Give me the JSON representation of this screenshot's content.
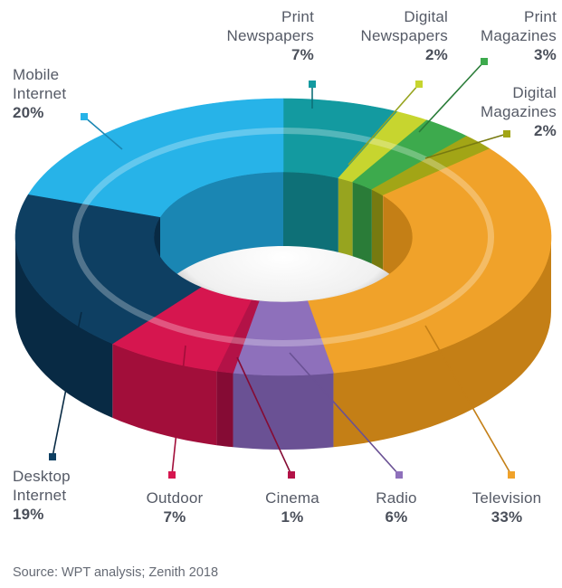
{
  "chart_data": {
    "type": "pie",
    "variant": "3d-donut",
    "slices": [
      {
        "label_line1": "Print",
        "label_line2": "Newspapers",
        "value": 7,
        "value_text": "7%",
        "color": "#139aa0",
        "side": "#0e7077"
      },
      {
        "label_line1": "Digital",
        "label_line2": "Newspapers",
        "value": 2,
        "value_text": "2%",
        "color": "#c7d52f",
        "side": "#97a41f"
      },
      {
        "label_line1": "Print",
        "label_line2": "Magazines",
        "value": 3,
        "value_text": "3%",
        "color": "#3daa4d",
        "side": "#2a7c38"
      },
      {
        "label_line1": "Digital",
        "label_line2": "Magazines",
        "value": 2,
        "value_text": "2%",
        "color": "#a2a516",
        "side": "#777a10"
      },
      {
        "label_line1": "Television",
        "label_line2": "",
        "value": 33,
        "value_text": "33%",
        "color": "#f0a22a",
        "side": "#c47f16"
      },
      {
        "label_line1": "Radio",
        "label_line2": "",
        "value": 6,
        "value_text": "6%",
        "color": "#8e70bb",
        "side": "#6a5194"
      },
      {
        "label_line1": "Cinema",
        "label_line2": "",
        "value": 1,
        "value_text": "1%",
        "color": "#b31247",
        "side": "#850b34"
      },
      {
        "label_line1": "Outdoor",
        "label_line2": "",
        "value": 7,
        "value_text": "7%",
        "color": "#d6164f",
        "side": "#a20e3a"
      },
      {
        "label_line1": "Desktop",
        "label_line2": "Internet",
        "value": 19,
        "value_text": "19%",
        "color": "#0e3f62",
        "side": "#082a44"
      },
      {
        "label_line1": "Mobile",
        "label_line2": "Internet",
        "value": 20,
        "value_text": "20%",
        "color": "#27b3e8",
        "side": "#1a86b3"
      }
    ],
    "source": "Source: WPT analysis; Zenith 2018"
  }
}
